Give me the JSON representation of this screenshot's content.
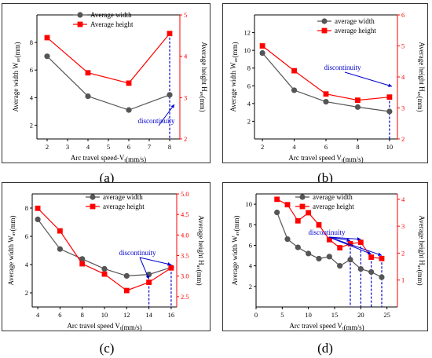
{
  "panel_labels": [
    "(a)",
    "(b)",
    "(c)",
    "(d)"
  ],
  "colors": {
    "width_series": "#555555",
    "height_series": "#ff0000",
    "annotation": "#0000cc",
    "right_axis": "#ff0000"
  },
  "chart_data": [
    {
      "type": "line",
      "xlabel": "Arc travel speed-V_t(mm/s)",
      "ylabel_left": "Average width W_av(mm)",
      "ylabel_right": "Average height H_av(mm)",
      "xlim": [
        1.5,
        8.5
      ],
      "xticks": [
        2,
        3,
        4,
        5,
        6,
        7,
        8
      ],
      "ylim_left": [
        1,
        10
      ],
      "yticks_left": [
        2,
        4,
        6,
        8
      ],
      "ylim_right": [
        2,
        5
      ],
      "yticks_right": [
        2,
        3,
        4,
        5
      ],
      "legend_position": "top-center",
      "series": [
        {
          "name": "Average width",
          "axis": "left",
          "marker": "circle",
          "x": [
            2,
            4,
            6,
            8
          ],
          "y": [
            7.0,
            4.1,
            3.1,
            4.2
          ]
        },
        {
          "name": "Average height",
          "axis": "right",
          "marker": "square",
          "x": [
            2,
            4,
            6,
            8
          ],
          "y": [
            4.45,
            3.6,
            3.35,
            4.55
          ]
        }
      ],
      "annotations": [
        {
          "text": "discontinuity",
          "x": 8
        }
      ]
    },
    {
      "type": "line",
      "xlabel": "Arc travel speed V_t(mm/s)",
      "ylabel_left": "Average width W_av(mm)",
      "ylabel_right": "Average height H_av(mm)",
      "xlim": [
        1.5,
        10.5
      ],
      "xticks": [
        2,
        4,
        6,
        8,
        10
      ],
      "ylim_left": [
        0,
        14
      ],
      "yticks_left": [
        2,
        4,
        6,
        8,
        10,
        12
      ],
      "ylim_right": [
        2,
        6
      ],
      "yticks_right": [
        2,
        3,
        4,
        5,
        6
      ],
      "legend_position": "top-right",
      "series": [
        {
          "name": "average width",
          "axis": "left",
          "marker": "circle",
          "x": [
            2,
            4,
            6,
            8,
            10
          ],
          "y": [
            9.7,
            5.5,
            4.2,
            3.6,
            3.1
          ]
        },
        {
          "name": "average height",
          "axis": "right",
          "marker": "square",
          "x": [
            2,
            4,
            6,
            8,
            10
          ],
          "y": [
            5.0,
            4.2,
            3.45,
            3.25,
            3.35
          ]
        }
      ],
      "annotations": [
        {
          "text": "discontinuity",
          "x": 10
        }
      ]
    },
    {
      "type": "line",
      "xlabel": "Arc travel speed V_t(mm/s)",
      "ylabel_left": "Average width W_av(mm)",
      "ylabel_right": "Average height H_av(mm)",
      "xlim": [
        3.5,
        16.5
      ],
      "xticks": [
        4,
        6,
        8,
        10,
        12,
        14,
        16
      ],
      "ylim_left": [
        1,
        9
      ],
      "yticks_left": [
        2,
        4,
        6,
        8
      ],
      "ylim_right": [
        2.25,
        5.0
      ],
      "yticks_right": [
        2.5,
        3.0,
        3.5,
        4.0,
        4.5,
        5.0
      ],
      "legend_position": "top-center",
      "series": [
        {
          "name": "average width",
          "axis": "left",
          "marker": "circle",
          "x": [
            4,
            6,
            8,
            10,
            12,
            14,
            16
          ],
          "y": [
            7.2,
            5.1,
            4.4,
            3.7,
            3.2,
            3.3,
            3.8
          ]
        },
        {
          "name": "average height",
          "axis": "right",
          "marker": "square",
          "x": [
            4,
            6,
            8,
            10,
            12,
            14,
            16
          ],
          "y": [
            4.65,
            4.1,
            3.3,
            3.05,
            2.65,
            2.85,
            3.2
          ]
        }
      ],
      "annotations": [
        {
          "text": "discontinuity",
          "x": [
            14,
            16
          ]
        }
      ]
    },
    {
      "type": "line",
      "xlabel": "Arc travel speed V_t(mm/s)",
      "ylabel_left": "Average width W_av(mm)",
      "ylabel_right": "Average height H_av(mm)",
      "xlim": [
        0,
        27
      ],
      "xticks": [
        0,
        5,
        10,
        15,
        20,
        25
      ],
      "ylim_left": [
        0,
        11
      ],
      "yticks_left": [
        2,
        4,
        6,
        8,
        10
      ],
      "ylim_right": [
        0,
        4.2
      ],
      "yticks_right": [
        1,
        2,
        3,
        4
      ],
      "legend_position": "top-center",
      "series": [
        {
          "name": "average width",
          "axis": "left",
          "marker": "circle",
          "x": [
            4,
            6,
            8,
            10,
            12,
            14,
            16,
            18,
            20,
            22,
            24
          ],
          "y": [
            9.2,
            6.6,
            5.8,
            5.2,
            4.7,
            4.9,
            4.0,
            4.6,
            3.7,
            3.4,
            2.9
          ]
        },
        {
          "name": "average height",
          "axis": "right",
          "marker": "square",
          "x": [
            4,
            6,
            8,
            10,
            12,
            14,
            16,
            18,
            20,
            22,
            24
          ],
          "y": [
            4.0,
            3.8,
            3.2,
            3.5,
            3.05,
            2.5,
            2.2,
            2.35,
            2.4,
            1.85,
            1.8
          ]
        }
      ],
      "annotations": [
        {
          "text": "discontinuity",
          "x": [
            18,
            20,
            22,
            24
          ]
        }
      ]
    }
  ]
}
